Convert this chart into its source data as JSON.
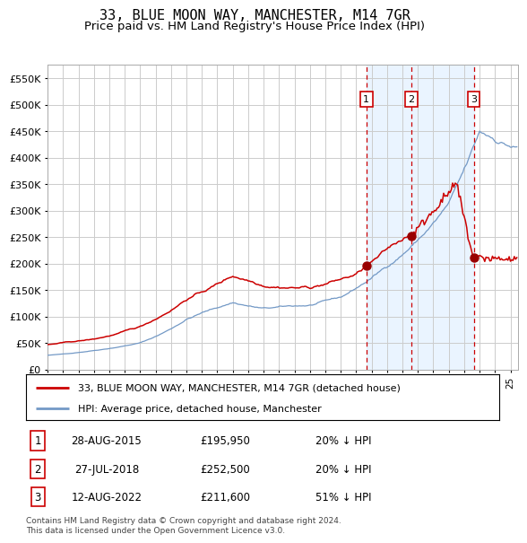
{
  "title": "33, BLUE MOON WAY, MANCHESTER, M14 7GR",
  "subtitle": "Price paid vs. HM Land Registry's House Price Index (HPI)",
  "title_fontsize": 11,
  "subtitle_fontsize": 9.5,
  "ylim": [
    0,
    575000
  ],
  "yticks": [
    0,
    50000,
    100000,
    150000,
    200000,
    250000,
    300000,
    350000,
    400000,
    450000,
    500000,
    550000
  ],
  "ytick_labels": [
    "£0",
    "£50K",
    "£100K",
    "£150K",
    "£200K",
    "£250K",
    "£300K",
    "£350K",
    "£400K",
    "£450K",
    "£500K",
    "£550K"
  ],
  "hpi_color": "#7399c6",
  "price_color": "#cc0000",
  "marker_color": "#990000",
  "vline_color": "#cc0000",
  "background_color": "#ffffff",
  "grid_color": "#cccccc",
  "shade_color": "#ddeeff",
  "xmin": 1995,
  "xmax": 2025.5,
  "transactions": [
    {
      "date_num": 2015.66,
      "price": 195950,
      "label": "1"
    },
    {
      "date_num": 2018.57,
      "price": 252500,
      "label": "2"
    },
    {
      "date_num": 2022.62,
      "price": 211600,
      "label": "3"
    }
  ],
  "legend_entries": [
    {
      "label": "33, BLUE MOON WAY, MANCHESTER, M14 7GR (detached house)",
      "color": "#cc0000"
    },
    {
      "label": "HPI: Average price, detached house, Manchester",
      "color": "#7399c6"
    }
  ],
  "table_rows": [
    {
      "num": "1",
      "date": "28-AUG-2015",
      "price": "£195,950",
      "hpi": "20% ↓ HPI"
    },
    {
      "num": "2",
      "date": "27-JUL-2018",
      "price": "£252,500",
      "hpi": "20% ↓ HPI"
    },
    {
      "num": "3",
      "date": "12-AUG-2022",
      "price": "£211,600",
      "hpi": "51% ↓ HPI"
    }
  ],
  "footnote": "Contains HM Land Registry data © Crown copyright and database right 2024.\nThis data is licensed under the Open Government Licence v3.0."
}
